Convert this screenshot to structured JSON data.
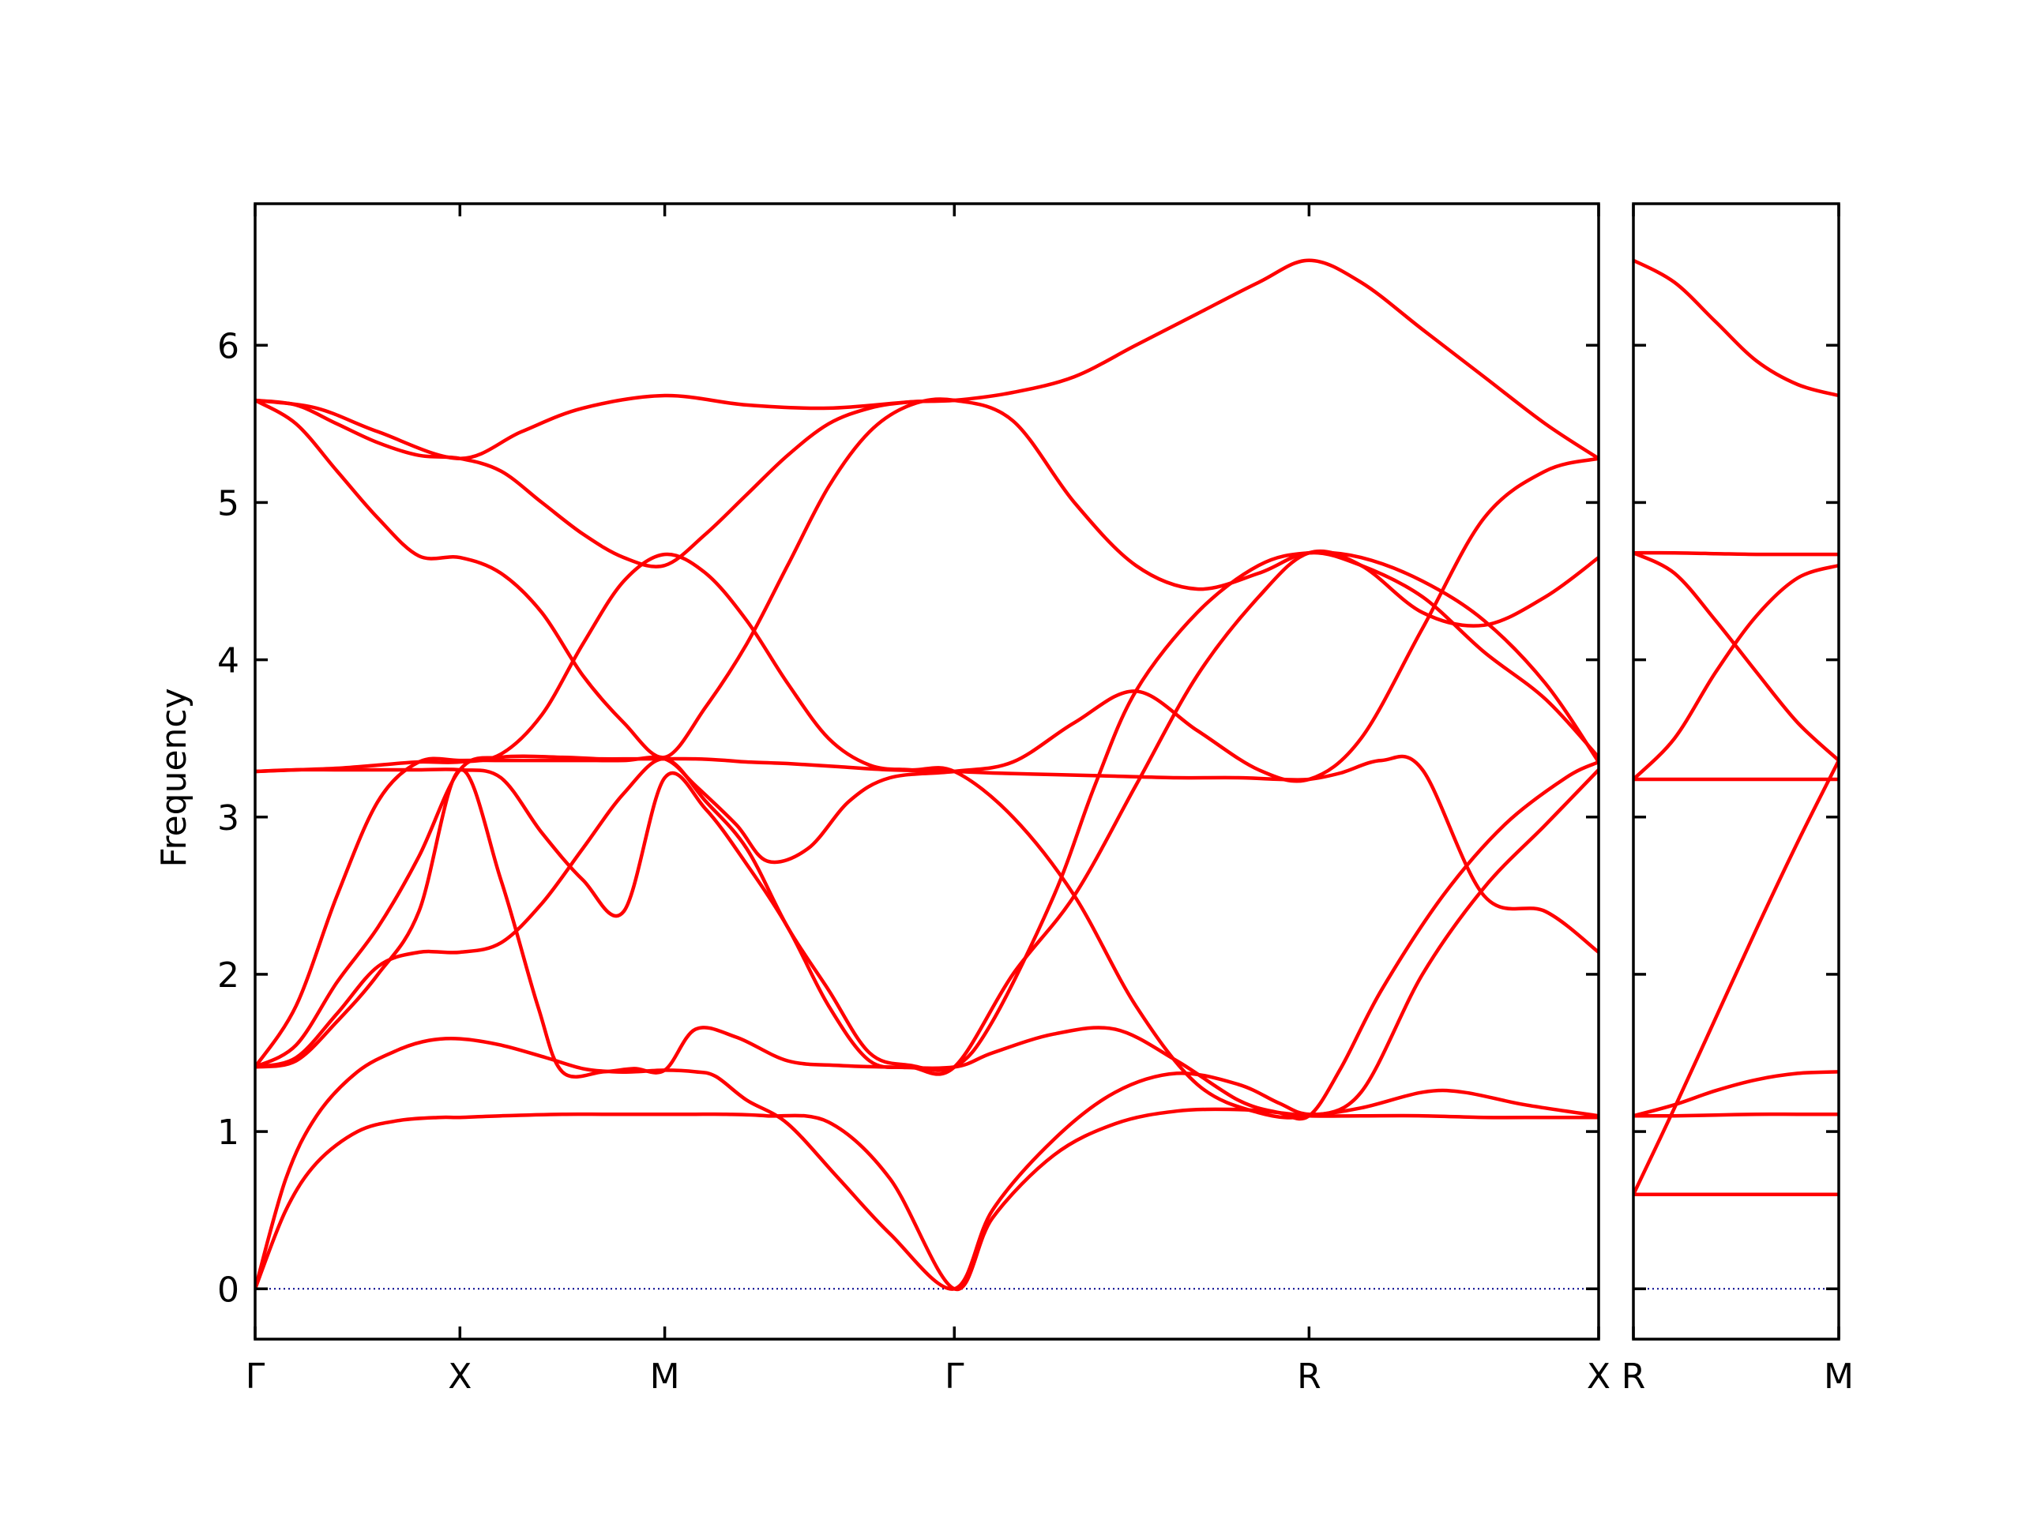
{
  "chart_data": {
    "type": "line",
    "title": "",
    "ylabel": "Frequency",
    "ylim": [
      -0.32,
      6.9
    ],
    "yticks": [
      0,
      1,
      2,
      3,
      4,
      5,
      6
    ],
    "grid": false,
    "colors": {
      "bands": "#ff0000",
      "zero_line": "#00008b",
      "frame": "#000000"
    },
    "panels": [
      {
        "xticks": [
          {
            "x": 0.0,
            "label": "Γ"
          },
          {
            "x": 1.0,
            "label": "X"
          },
          {
            "x": 2.0,
            "label": "M"
          },
          {
            "x": 3.414,
            "label": "Γ"
          },
          {
            "x": 5.146,
            "label": "R"
          },
          {
            "x": 6.56,
            "label": "X"
          }
        ],
        "xlim": [
          0,
          6.56
        ],
        "bands": [
          {
            "x": [
              0,
              0.15,
              0.3,
              0.5,
              0.7,
              0.9,
              1.0,
              1.2,
              1.5,
              1.7,
              1.85,
              2.0,
              2.15,
              2.3,
              2.5,
              2.8,
              3.1,
              3.414,
              3.6,
              3.9,
              4.2,
              4.5,
              4.8,
              5.0,
              5.146,
              5.4,
              5.7,
              6.0,
              6.3,
              6.56
            ],
            "y": [
              0,
              0.5,
              0.8,
              1.0,
              1.07,
              1.09,
              1.09,
              1.1,
              1.11,
              1.11,
              1.11,
              1.11,
              1.11,
              1.11,
              1.1,
              1.06,
              0.7,
              0,
              0.45,
              0.85,
              1.05,
              1.13,
              1.14,
              1.12,
              1.1,
              1.1,
              1.1,
              1.09,
              1.09,
              1.09
            ]
          },
          {
            "x": [
              0,
              0.15,
              0.3,
              0.5,
              0.7,
              0.85,
              1.0,
              1.2,
              1.42,
              1.6,
              1.75,
              1.85,
              2.0,
              2.15,
              2.25,
              2.4,
              2.6,
              2.85,
              3.1,
              3.414,
              3.6,
              3.9,
              4.2,
              4.5,
              4.8,
              5.0,
              5.146,
              5.4,
              5.7,
              5.9,
              6.2,
              6.56
            ],
            "y": [
              0,
              0.7,
              1.1,
              1.38,
              1.52,
              1.58,
              1.59,
              1.55,
              1.47,
              1.4,
              1.38,
              1.38,
              1.39,
              1.38,
              1.35,
              1.2,
              1.05,
              0.7,
              0.35,
              0,
              0.5,
              0.95,
              1.25,
              1.37,
              1.3,
              1.18,
              1.11,
              1.15,
              1.25,
              1.25,
              1.17,
              1.1
            ]
          },
          {
            "x": [
              0,
              0.2,
              0.4,
              0.6,
              0.8,
              1.0,
              1.2,
              1.5,
              1.68,
              1.85,
              2.0,
              2.15,
              2.3,
              2.4,
              2.6,
              2.85,
              3.1,
              3.414,
              3.6,
              3.9,
              4.2,
              4.5,
              4.8,
              5.0,
              5.146,
              5.3,
              5.5,
              5.7,
              6.0,
              6.3,
              6.56
            ],
            "y": [
              1.41,
              1.55,
              1.95,
              2.3,
              2.75,
              3.3,
              3.38,
              3.38,
              3.37,
              3.37,
              3.37,
              3.37,
              3.36,
              3.35,
              3.34,
              3.32,
              3.3,
              3.29,
              3.28,
              3.27,
              3.26,
              3.25,
              3.25,
              3.24,
              3.24,
              3.28,
              3.36,
              3.3,
              2.5,
              2.4,
              2.14
            ]
          },
          {
            "x": [
              0,
              0.2,
              0.4,
              0.6,
              0.8,
              1.0,
              1.2,
              1.38,
              1.5,
              1.7,
              1.85,
              2.0,
              2.15,
              2.35,
              2.6,
              2.85,
              3.1,
              3.414,
              3.6,
              3.9,
              4.2,
              4.5,
              4.8,
              5.0,
              5.146,
              5.3,
              5.5,
              5.8,
              6.1,
              6.4,
              6.56
            ],
            "y": [
              1.41,
              1.45,
              1.7,
              2.0,
              2.4,
              3.3,
              2.6,
              1.8,
              1.38,
              1.38,
              1.4,
              1.39,
              1.65,
              1.6,
              1.45,
              1.42,
              1.41,
              1.41,
              1.5,
              1.62,
              1.65,
              1.45,
              1.2,
              1.12,
              1.1,
              1.4,
              1.9,
              2.5,
              2.95,
              3.25,
              3.35
            ]
          },
          {
            "x": [
              0,
              0.2,
              0.4,
              0.6,
              0.8,
              1.0,
              1.2,
              1.4,
              1.6,
              1.8,
              2.0,
              2.15,
              2.35,
              2.5,
              2.7,
              2.9,
              3.1,
              3.414,
              3.7,
              4.0,
              4.3,
              4.6,
              4.9,
              5.146,
              5.4,
              5.7,
              6.0,
              6.3,
              6.56
            ],
            "y": [
              1.41,
              1.8,
              2.5,
              3.1,
              3.35,
              3.36,
              3.36,
              3.36,
              3.36,
              3.36,
              3.37,
              3.2,
              2.95,
              2.72,
              2.8,
              3.1,
              3.25,
              3.29,
              3.35,
              3.6,
              3.8,
              3.55,
              3.3,
              3.24,
              3.5,
              4.2,
              4.9,
              5.2,
              5.28
            ]
          },
          {
            "x": [
              0,
              0.2,
              0.4,
              0.6,
              0.8,
              1.0,
              1.2,
              1.4,
              1.6,
              1.8,
              2.0,
              2.2,
              2.4,
              2.6,
              2.8,
              3.0,
              3.2,
              3.414,
              3.6,
              3.9,
              4.1,
              4.3,
              4.6,
              4.9,
              5.146,
              5.4,
              5.7,
              6.0,
              6.3,
              6.56
            ],
            "y": [
              1.41,
              1.47,
              1.75,
              2.05,
              2.14,
              2.14,
              2.2,
              2.45,
              2.8,
              3.15,
              3.37,
              3.1,
              2.8,
              2.3,
              1.9,
              1.5,
              1.42,
              1.41,
              1.7,
              2.5,
              3.2,
              3.8,
              4.3,
              4.6,
              4.68,
              4.65,
              4.5,
              4.25,
              3.85,
              3.35
            ]
          },
          {
            "x": [
              0,
              0.2,
              0.4,
              0.6,
              0.8,
              1.0,
              1.2,
              1.4,
              1.6,
              1.8,
              2.0,
              2.2,
              2.4,
              2.6,
              2.8,
              3.0,
              3.2,
              3.414,
              3.7,
              4.0,
              4.3,
              4.6,
              4.9,
              5.146,
              5.4,
              5.7,
              6.0,
              6.3,
              6.56
            ],
            "y": [
              3.29,
              3.3,
              3.31,
              3.33,
              3.35,
              3.35,
              3.4,
              3.65,
              4.1,
              4.5,
              4.67,
              4.55,
              4.25,
              3.85,
              3.5,
              3.33,
              3.3,
              3.29,
              3.0,
              2.5,
              1.8,
              1.3,
              1.12,
              1.1,
              1.25,
              2.0,
              2.55,
              2.95,
              3.3
            ]
          },
          {
            "x": [
              0,
              0.2,
              0.4,
              0.6,
              0.8,
              1.0,
              1.2,
              1.4,
              1.6,
              1.8,
              2.0,
              2.2,
              2.4,
              2.6,
              2.8,
              3.0,
              3.2,
              3.414,
              3.7,
              4.0,
              4.3,
              4.6,
              4.9,
              5.146,
              5.4,
              5.7,
              6.0,
              6.3,
              6.56
            ],
            "y": [
              3.29,
              3.3,
              3.3,
              3.3,
              3.3,
              3.3,
              3.25,
              2.9,
              2.6,
              2.4,
              3.25,
              3.05,
              2.7,
              2.3,
              1.8,
              1.45,
              1.41,
              1.41,
              2.0,
              2.5,
              3.2,
              3.9,
              4.4,
              4.68,
              4.6,
              4.3,
              4.22,
              4.4,
              4.65
            ]
          },
          {
            "x": [
              0,
              0.2,
              0.4,
              0.6,
              0.8,
              1.0,
              1.2,
              1.4,
              1.6,
              1.8,
              2.0,
              2.2,
              2.4,
              2.6,
              2.8,
              3.0,
              3.2,
              3.414,
              3.7,
              4.0,
              4.3,
              4.6,
              4.9,
              5.146,
              5.4,
              5.7,
              6.0,
              6.3,
              6.56
            ],
            "y": [
              5.65,
              5.5,
              5.2,
              4.9,
              4.66,
              4.65,
              4.55,
              4.3,
              3.9,
              3.6,
              3.38,
              3.7,
              4.1,
              4.6,
              5.1,
              5.45,
              5.62,
              5.65,
              5.52,
              5.0,
              4.6,
              4.45,
              4.55,
              4.68,
              4.6,
              4.4,
              4.05,
              3.75,
              3.38
            ]
          },
          {
            "x": [
              0,
              0.2,
              0.4,
              0.6,
              0.8,
              1.0,
              1.2,
              1.4,
              1.6,
              1.8,
              2.0,
              2.2,
              2.4,
              2.6,
              2.8,
              3.0,
              3.2,
              3.414,
              3.7,
              4.0,
              4.3,
              4.6,
              4.9,
              5.146,
              5.4,
              5.7,
              6.0,
              6.3,
              6.56
            ],
            "y": [
              5.65,
              5.62,
              5.5,
              5.38,
              5.3,
              5.28,
              5.2,
              5.0,
              4.8,
              4.65,
              4.6,
              4.8,
              5.05,
              5.3,
              5.5,
              5.6,
              5.64,
              5.65,
              5.7,
              5.8,
              6.0,
              6.2,
              6.4,
              6.54,
              6.4,
              6.1,
              5.8,
              5.5,
              5.28
            ]
          },
          {
            "x": [
              0,
              0.3,
              0.6,
              1.0,
              1.3,
              1.6,
              2.0,
              2.4,
              2.8,
              3.2,
              3.414
            ],
            "y": [
              5.65,
              5.6,
              5.45,
              5.28,
              5.45,
              5.6,
              5.68,
              5.62,
              5.6,
              5.64,
              5.65
            ]
          }
        ]
      },
      {
        "xticks": [
          {
            "x": 0.0,
            "label": "R"
          },
          {
            "x": 1.0,
            "label": "M"
          }
        ],
        "xlim": [
          0,
          1.0
        ],
        "bands": [
          {
            "x": [
              0,
              0.2,
              0.4,
              0.6,
              0.8,
              1.0
            ],
            "y": [
              0.6,
              0.6,
              0.6,
              0.6,
              0.6,
              0.6
            ]
          },
          {
            "x": [
              0,
              0.2,
              0.4,
              0.6,
              0.8,
              1.0
            ],
            "y": [
              1.1,
              1.1,
              1.105,
              1.11,
              1.11,
              1.11
            ]
          },
          {
            "x": [
              0,
              0.2,
              0.4,
              0.6,
              0.8,
              1.0
            ],
            "y": [
              1.1,
              1.17,
              1.26,
              1.33,
              1.37,
              1.38
            ]
          },
          {
            "x": [
              0,
              0.2,
              0.4,
              0.6,
              0.8,
              1.0
            ],
            "y": [
              0.6,
              1.15,
              1.72,
              2.29,
              2.84,
              3.36
            ]
          },
          {
            "x": [
              0,
              0.2,
              0.4,
              0.6,
              0.8,
              1.0
            ],
            "y": [
              3.24,
              3.24,
              3.24,
              3.24,
              3.24,
              3.24
            ]
          },
          {
            "x": [
              0,
              0.2,
              0.4,
              0.6,
              0.8,
              1.0
            ],
            "y": [
              3.24,
              3.5,
              3.92,
              4.28,
              4.52,
              4.6
            ]
          },
          {
            "x": [
              0,
              0.2,
              0.4,
              0.6,
              0.8,
              1.0
            ],
            "y": [
              4.68,
              4.55,
              4.25,
              3.92,
              3.6,
              3.36
            ]
          },
          {
            "x": [
              0,
              0.2,
              0.4,
              0.6,
              0.8,
              1.0
            ],
            "y": [
              4.68,
              4.68,
              4.675,
              4.67,
              4.67,
              4.67
            ]
          },
          {
            "x": [
              0,
              0.2,
              0.4,
              0.6,
              0.8,
              1.0
            ],
            "y": [
              6.54,
              6.4,
              6.15,
              5.9,
              5.75,
              5.68
            ]
          }
        ]
      }
    ]
  }
}
